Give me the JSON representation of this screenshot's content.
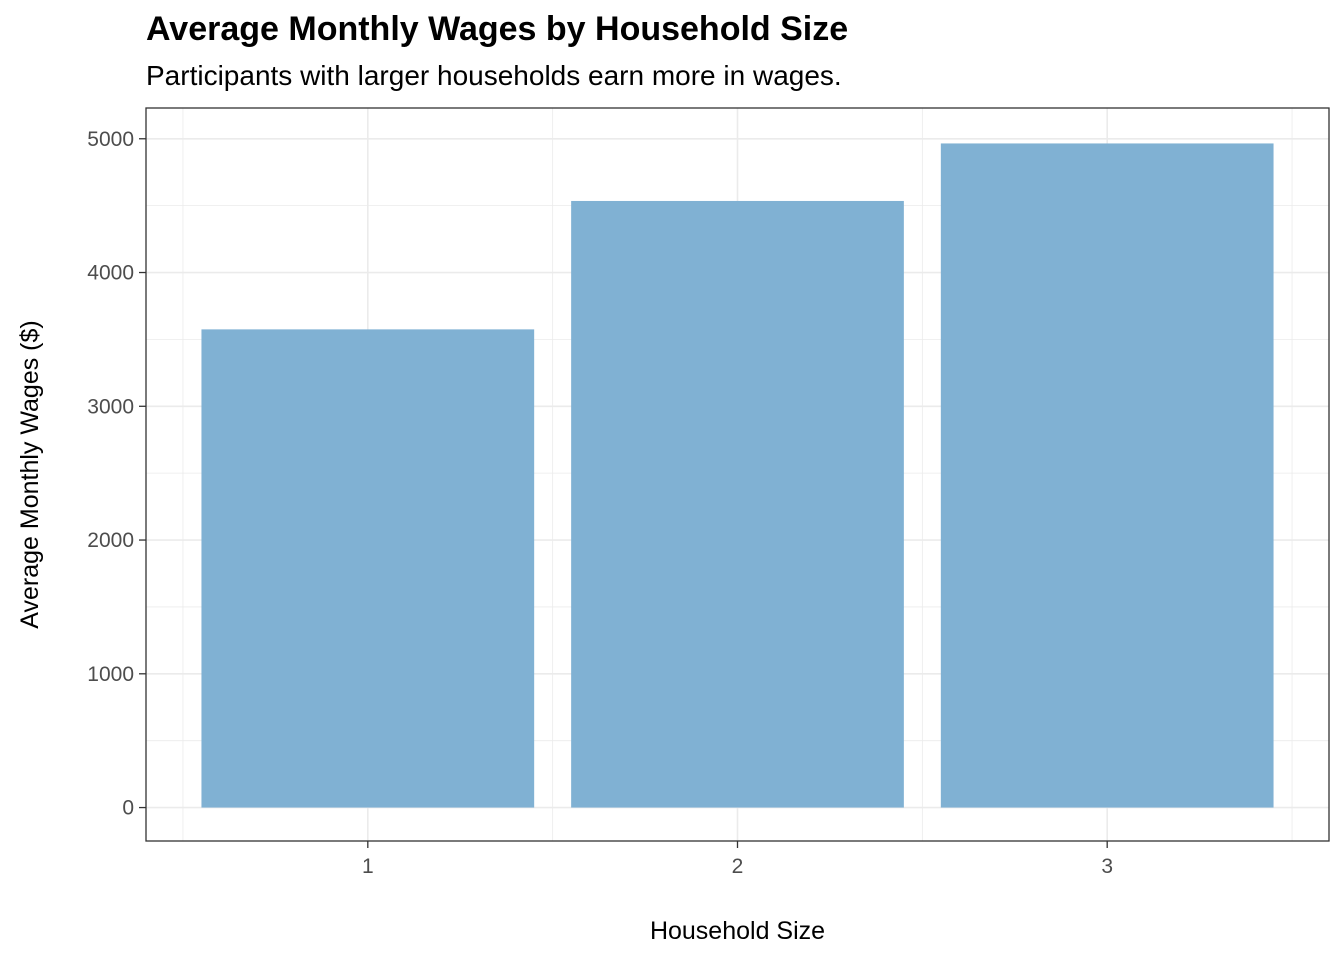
{
  "chart_data": {
    "type": "bar",
    "title": "Average Monthly Wages by Household Size",
    "subtitle": "Participants with larger households earn more in wages.",
    "xlabel": "Household Size",
    "ylabel": "Average Monthly Wages ($)",
    "categories": [
      "1",
      "2",
      "3"
    ],
    "values": [
      3575,
      4535,
      4965
    ],
    "ylim": [
      -250,
      5230
    ],
    "yticks": [
      0,
      1000,
      2000,
      3000,
      4000,
      5000
    ],
    "ytick_labels": [
      "0",
      "1000",
      "2000",
      "3000",
      "4000",
      "5000"
    ],
    "grid": true,
    "bar_color": "#80b1d3",
    "grid_color": "#ebebeb",
    "panel_border_color": "#333333"
  }
}
